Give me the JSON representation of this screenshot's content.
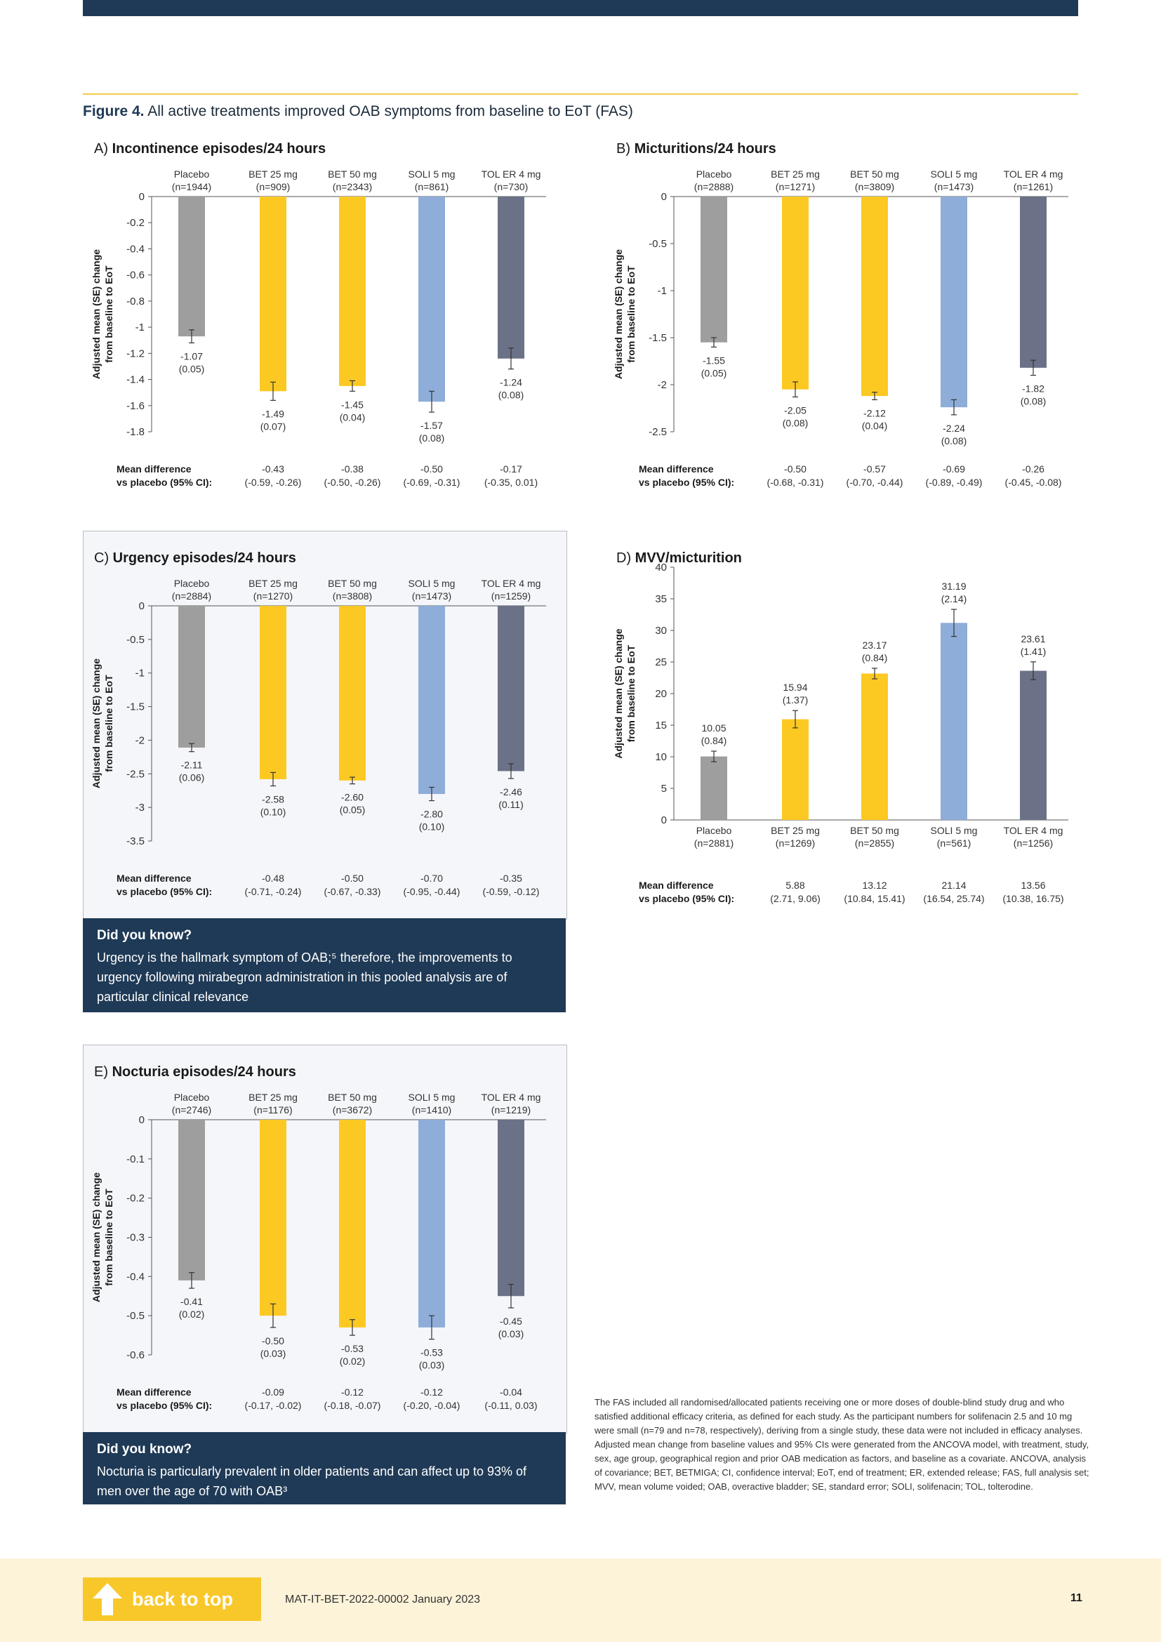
{
  "figure": {
    "label": "Figure 4.",
    "title": "All active treatments improved OAB symptoms from baseline to EoT (FAS)"
  },
  "chart_data": [
    {
      "id": "A",
      "type": "bar",
      "panel_letter": "A)",
      "title": "Incontinence episodes/24 hours",
      "ylabel_line1": "Adjusted mean (SE) change",
      "ylabel_line2": "from baseline to EoT",
      "ylim": [
        -1.8,
        0
      ],
      "yticks": [
        0,
        -0.2,
        -0.4,
        -0.6,
        -0.8,
        -1,
        -1.2,
        -1.4,
        -1.6,
        -1.8
      ],
      "yticklabels": [
        "0",
        "-0.2",
        "-0.4",
        "-0.6",
        "-0.8",
        "-1",
        "-1.2",
        "-1.4",
        "-1.6",
        "-1.8"
      ],
      "categories": [
        "Placebo",
        "BET 25 mg",
        "BET 50 mg",
        "SOLI 5 mg",
        "TOL ER 4 mg"
      ],
      "n": [
        "(n=1944)",
        "(n=909)",
        "(n=2343)",
        "(n=861)",
        "(n=730)"
      ],
      "values": [
        -1.07,
        -1.49,
        -1.45,
        -1.57,
        -1.24
      ],
      "se": [
        0.05,
        0.07,
        0.04,
        0.08,
        0.08
      ],
      "value_labels": [
        "-1.07",
        "-1.49",
        "-1.45",
        "-1.57",
        "-1.24"
      ],
      "se_labels": [
        "(0.05)",
        "(0.07)",
        "(0.04)",
        "(0.08)",
        "(0.08)"
      ],
      "md_label_line1": "Mean difference",
      "md_label_line2": "vs placebo (95% CI):",
      "md_values": [
        "",
        "-0.43",
        "-0.38",
        "-0.50",
        "-0.17"
      ],
      "md_ci": [
        "",
        "(-0.59, -0.26)",
        "(-0.50, -0.26)",
        "(-0.69, -0.31)",
        "(-0.35, 0.01)"
      ]
    },
    {
      "id": "B",
      "type": "bar",
      "panel_letter": "B)",
      "title": "Micturitions/24 hours",
      "ylabel_line1": "Adjusted mean (SE) change",
      "ylabel_line2": "from baseline to EoT",
      "ylim": [
        -2.5,
        0
      ],
      "yticks": [
        0,
        -0.5,
        -1,
        -1.5,
        -2,
        -2.5
      ],
      "yticklabels": [
        "0",
        "-0.5",
        "-1",
        "-1.5",
        "-2",
        "-2.5"
      ],
      "categories": [
        "Placebo",
        "BET 25 mg",
        "BET 50 mg",
        "SOLI 5 mg",
        "TOL ER 4 mg"
      ],
      "n": [
        "(n=2888)",
        "(n=1271)",
        "(n=3809)",
        "(n=1473)",
        "(n=1261)"
      ],
      "values": [
        -1.55,
        -2.05,
        -2.12,
        -2.24,
        -1.82
      ],
      "se": [
        0.05,
        0.08,
        0.04,
        0.08,
        0.08
      ],
      "value_labels": [
        "-1.55",
        "-2.05",
        "-2.12",
        "-2.24",
        "-1.82"
      ],
      "se_labels": [
        "(0.05)",
        "(0.08)",
        "(0.04)",
        "(0.08)",
        "(0.08)"
      ],
      "md_label_line1": "Mean difference",
      "md_label_line2": "vs placebo (95% CI):",
      "md_values": [
        "",
        "-0.50",
        "-0.57",
        "-0.69",
        "-0.26"
      ],
      "md_ci": [
        "",
        "(-0.68, -0.31)",
        "(-0.70, -0.44)",
        "(-0.89, -0.49)",
        "(-0.45, -0.08)"
      ]
    },
    {
      "id": "C",
      "type": "bar",
      "panel_letter": "C)",
      "title": "Urgency episodes/24 hours",
      "ylabel_line1": "Adjusted mean (SE) change",
      "ylabel_line2": "from baseline to EoT",
      "ylim": [
        -3.5,
        0
      ],
      "yticks": [
        0,
        -0.5,
        -1,
        -1.5,
        -2,
        -2.5,
        -3,
        -3.5
      ],
      "yticklabels": [
        "0",
        "-0.5",
        "-1",
        "-1.5",
        "-2",
        "-2.5",
        "-3",
        "-3.5"
      ],
      "categories": [
        "Placebo",
        "BET 25 mg",
        "BET 50 mg",
        "SOLI 5 mg",
        "TOL ER 4 mg"
      ],
      "n": [
        "(n=2884)",
        "(n=1270)",
        "(n=3808)",
        "(n=1473)",
        "(n=1259)"
      ],
      "values": [
        -2.11,
        -2.58,
        -2.6,
        -2.8,
        -2.46
      ],
      "se": [
        0.06,
        0.1,
        0.05,
        0.1,
        0.11
      ],
      "value_labels": [
        "-2.11",
        "-2.58",
        "-2.60",
        "-2.80",
        "-2.46"
      ],
      "se_labels": [
        "(0.06)",
        "(0.10)",
        "(0.05)",
        "(0.10)",
        "(0.11)"
      ],
      "md_label_line1": "Mean difference",
      "md_label_line2": "vs placebo (95% CI):",
      "md_values": [
        "",
        "-0.48",
        "-0.50",
        "-0.70",
        "-0.35"
      ],
      "md_ci": [
        "",
        "(-0.71, -0.24)",
        "(-0.67, -0.33)",
        "(-0.95, -0.44)",
        "(-0.59, -0.12)"
      ]
    },
    {
      "id": "D",
      "type": "bar",
      "panel_letter": "D)",
      "title": "MVV/micturition",
      "ylabel_line1": "Adjusted mean (SE) change",
      "ylabel_line2": "from baseline to EoT",
      "ylim": [
        0,
        40
      ],
      "yticks": [
        0,
        5,
        10,
        15,
        20,
        25,
        30,
        35,
        40
      ],
      "yticklabels": [
        "0",
        "5",
        "10",
        "15",
        "20",
        "25",
        "30",
        "35",
        "40"
      ],
      "categories": [
        "Placebo",
        "BET 25 mg",
        "BET 50 mg",
        "SOLI 5 mg",
        "TOL ER 4 mg"
      ],
      "n": [
        "(n=2881)",
        "(n=1269)",
        "(n=2855)",
        "(n=561)",
        "(n=1256)"
      ],
      "values": [
        10.05,
        15.94,
        23.17,
        31.19,
        23.61
      ],
      "se": [
        0.84,
        1.37,
        0.84,
        2.14,
        1.41
      ],
      "value_labels": [
        "10.05",
        "15.94",
        "23.17",
        "31.19",
        "23.61"
      ],
      "se_labels": [
        "(0.84)",
        "(1.37)",
        "(0.84)",
        "(2.14)",
        "(1.41)"
      ],
      "md_label_line1": "Mean difference",
      "md_label_line2": "vs placebo (95% CI):",
      "md_values": [
        "",
        "5.88",
        "13.12",
        "21.14",
        "13.56"
      ],
      "md_ci": [
        "",
        "(2.71, 9.06)",
        "(10.84, 15.41)",
        "(16.54, 25.74)",
        "(10.38, 16.75)"
      ]
    },
    {
      "id": "E",
      "type": "bar",
      "panel_letter": "E)",
      "title": "Nocturia episodes/24 hours",
      "ylabel_line1": "Adjusted mean (SE) change",
      "ylabel_line2": "from baseline to EoT",
      "ylim": [
        -0.6,
        0
      ],
      "yticks": [
        0,
        -0.1,
        -0.2,
        -0.3,
        -0.4,
        -0.5,
        -0.6
      ],
      "yticklabels": [
        "0",
        "-0.1",
        "-0.2",
        "-0.3",
        "-0.4",
        "-0.5",
        "-0.6"
      ],
      "categories": [
        "Placebo",
        "BET 25 mg",
        "BET 50 mg",
        "SOLI 5 mg",
        "TOL ER 4 mg"
      ],
      "n": [
        "(n=2746)",
        "(n=1176)",
        "(n=3672)",
        "(n=1410)",
        "(n=1219)"
      ],
      "values": [
        -0.41,
        -0.5,
        -0.53,
        -0.53,
        -0.45
      ],
      "se": [
        0.02,
        0.03,
        0.02,
        0.03,
        0.03
      ],
      "value_labels": [
        "-0.41",
        "-0.50",
        "-0.53",
        "-0.53",
        "-0.45"
      ],
      "se_labels": [
        "(0.02)",
        "(0.03)",
        "(0.02)",
        "(0.03)",
        "(0.03)"
      ],
      "md_label_line1": "Mean difference",
      "md_label_line2": "vs placebo (95% CI):",
      "md_values": [
        "",
        "-0.09",
        "-0.12",
        "-0.12",
        "-0.04"
      ],
      "md_ci": [
        "",
        "(-0.17, -0.02)",
        "(-0.18, -0.07)",
        "(-0.20, -0.04)",
        "(-0.11, 0.03)"
      ]
    }
  ],
  "colors": {
    "bars": [
      "#9e9e9e",
      "#fcc923",
      "#fcc923",
      "#8ead db",
      "#6c7286"
    ],
    "navy": "#1f3a56",
    "gold": "#f8c82b",
    "panel_bg": "#f5f6fa"
  },
  "did_you_know_1": {
    "title": "Did you know?",
    "body": "Urgency is the hallmark symptom of OAB;⁵ therefore, the improvements to urgency following mirabegron administration in this pooled analysis are of particular clinical relevance"
  },
  "did_you_know_2": {
    "title": "Did you know?",
    "body": "Nocturia is particularly prevalent in older patients and can affect up to 93% of men over the age of 70 with OAB³"
  },
  "footnote": "The FAS included all randomised/allocated patients receiving one or more doses of double-blind study drug and who satisfied additional efficacy criteria, as defined for each study. As the participant numbers for solifenacin 2.5 and 10 mg were small (n=79 and n=78, respectively), deriving from a single study, these data were not included in efficacy analyses. Adjusted mean change from baseline values and 95% CIs were generated from the ANCOVA model,  with treatment, study, sex, age group, geographical region and prior OAB medication as factors, and baseline as a covariate. ANCOVA, analysis of covariance; BET, BETMIGA; CI, confidence interval; EoT, end of treatment; ER, extended release; FAS, full analysis set; MVV, mean volume voided; OAB, overactive bladder; SE, standard error; SOLI, solifenacin; TOL, tolterodine.",
  "footer": {
    "back_to_top": "back to top",
    "arrow_icon": "up-arrow-icon",
    "doc_ref": "MAT-IT-BET-2022-00002 January 2023",
    "page_number": "11"
  }
}
